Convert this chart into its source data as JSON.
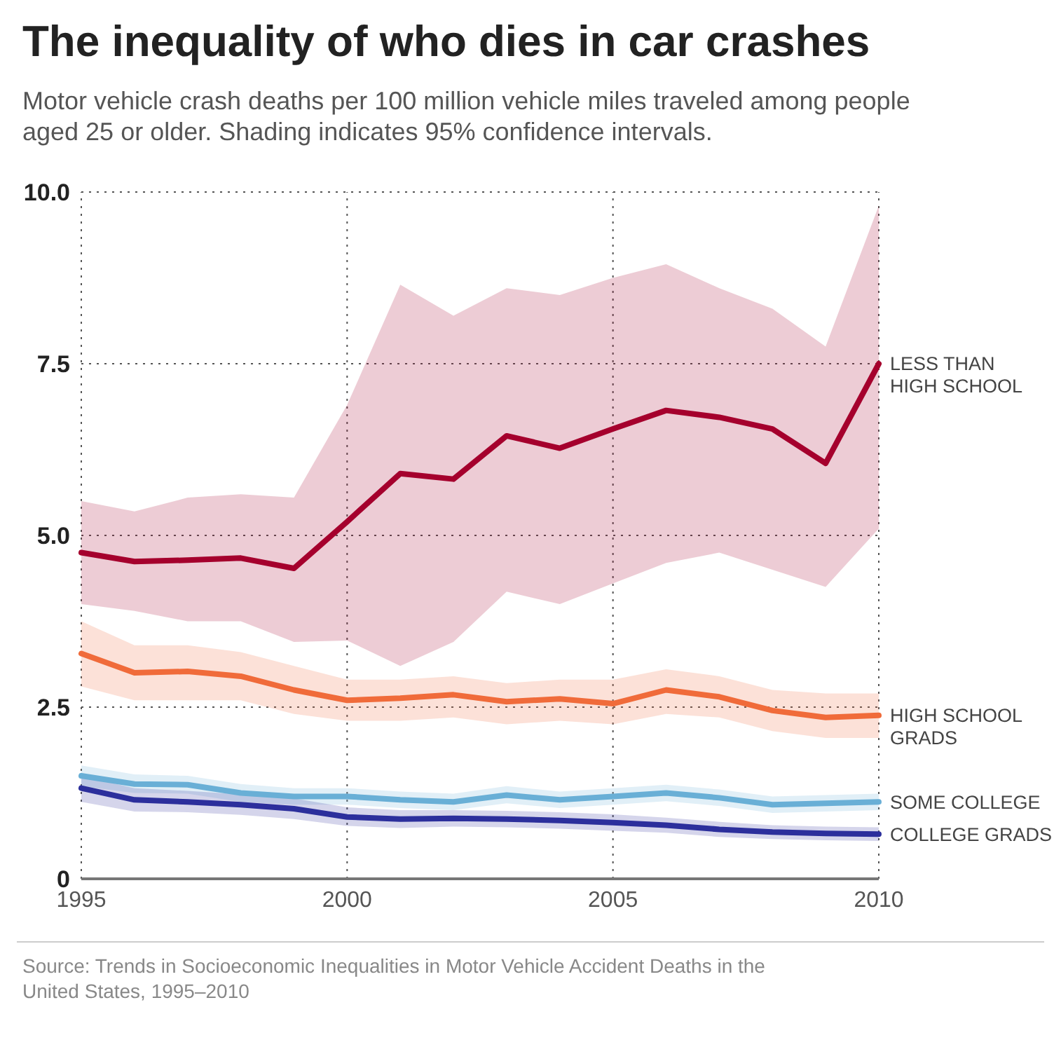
{
  "chart_data": {
    "type": "line",
    "title": "The inequality of who dies in car crashes",
    "subtitle": "Motor vehicle crash deaths per 100 million vehicle miles traveled among people aged 25 or older. Shading indicates 95% confidence intervals.",
    "x": [
      1995,
      1996,
      1997,
      1998,
      1999,
      2000,
      2001,
      2002,
      2003,
      2004,
      2005,
      2006,
      2007,
      2008,
      2009,
      2010
    ],
    "series": [
      {
        "name": "LESS THAN HIGH SCHOOL",
        "color": "#a5002d",
        "values": [
          4.75,
          4.62,
          4.64,
          4.67,
          4.52,
          5.2,
          5.9,
          5.82,
          6.45,
          6.27,
          6.55,
          6.82,
          6.72,
          6.55,
          6.05,
          7.5
        ],
        "upper": [
          5.5,
          5.35,
          5.55,
          5.6,
          5.55,
          6.9,
          8.65,
          8.2,
          8.6,
          8.5,
          8.75,
          8.95,
          8.6,
          8.3,
          7.75,
          9.8
        ],
        "lower": [
          4.0,
          3.9,
          3.75,
          3.75,
          3.45,
          3.47,
          3.1,
          3.45,
          4.18,
          4.0,
          4.3,
          4.6,
          4.75,
          4.5,
          4.25,
          5.1
        ]
      },
      {
        "name": "HIGH SCHOOL GRADS",
        "color": "#f06b3a",
        "values": [
          3.28,
          3.0,
          3.02,
          2.95,
          2.75,
          2.6,
          2.63,
          2.68,
          2.58,
          2.62,
          2.55,
          2.75,
          2.65,
          2.45,
          2.35,
          2.38
        ],
        "upper": [
          3.75,
          3.4,
          3.4,
          3.3,
          3.1,
          2.9,
          2.9,
          2.95,
          2.85,
          2.9,
          2.9,
          3.05,
          2.95,
          2.75,
          2.7,
          2.7
        ],
        "lower": [
          2.8,
          2.6,
          2.6,
          2.6,
          2.4,
          2.3,
          2.3,
          2.35,
          2.25,
          2.3,
          2.25,
          2.4,
          2.35,
          2.15,
          2.05,
          2.05
        ]
      },
      {
        "name": "SOME COLLEGE",
        "color": "#69afd6",
        "values": [
          1.5,
          1.38,
          1.37,
          1.25,
          1.2,
          1.2,
          1.15,
          1.12,
          1.22,
          1.15,
          1.2,
          1.25,
          1.18,
          1.08,
          1.1,
          1.12
        ],
        "upper": [
          1.65,
          1.52,
          1.5,
          1.38,
          1.32,
          1.32,
          1.27,
          1.24,
          1.35,
          1.27,
          1.32,
          1.37,
          1.3,
          1.2,
          1.22,
          1.24
        ],
        "lower": [
          1.35,
          1.25,
          1.24,
          1.12,
          1.08,
          1.08,
          1.03,
          1.0,
          1.1,
          1.03,
          1.08,
          1.13,
          1.06,
          0.96,
          0.98,
          1.0
        ]
      },
      {
        "name": "COLLEGE GRADS",
        "color": "#2c2f9c",
        "values": [
          1.32,
          1.15,
          1.12,
          1.08,
          1.02,
          0.9,
          0.87,
          0.88,
          0.87,
          0.85,
          0.82,
          0.78,
          0.72,
          0.68,
          0.66,
          0.65
        ],
        "upper": [
          1.5,
          1.32,
          1.28,
          1.23,
          1.17,
          1.04,
          1.0,
          1.0,
          0.99,
          0.97,
          0.94,
          0.89,
          0.83,
          0.78,
          0.76,
          0.75
        ],
        "lower": [
          1.12,
          0.98,
          0.97,
          0.93,
          0.87,
          0.77,
          0.74,
          0.76,
          0.75,
          0.73,
          0.7,
          0.67,
          0.61,
          0.58,
          0.56,
          0.55
        ]
      }
    ],
    "xlim": [
      1995,
      2010
    ],
    "xticks": [
      1995,
      2000,
      2005,
      2010
    ],
    "ylim": [
      0,
      10
    ],
    "yticks": [
      {
        "value": 0,
        "label": "0"
      },
      {
        "value": 2.5,
        "label": "2.5"
      },
      {
        "value": 5,
        "label": "5.0"
      },
      {
        "value": 7.5,
        "label": "7.5"
      },
      {
        "value": 10,
        "label": "10.0"
      }
    ],
    "grid": true,
    "line_style": "solid",
    "marker": "none",
    "annotations": [
      "Source: Trends in Socioeconomic Inequalities in Motor Vehicle Accident Deaths in the United States, 1995–2010"
    ]
  }
}
